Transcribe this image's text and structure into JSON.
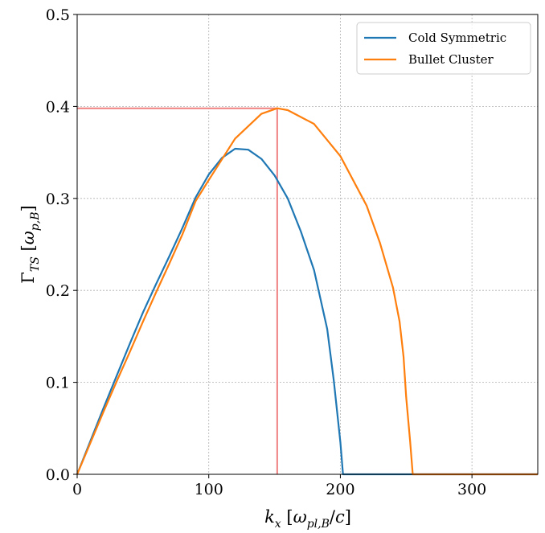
{
  "chart_data": {
    "type": "line",
    "xlabel": "k_x [ω_pl,B/c]",
    "ylabel": "Γ_TS [ω_p,B]",
    "xlim": [
      0,
      350
    ],
    "ylim": [
      0,
      0.5
    ],
    "x_ticks": [
      "0",
      "100",
      "200",
      "300"
    ],
    "y_ticks": [
      "0.0",
      "0.1",
      "0.2",
      "0.3",
      "0.4",
      "0.5"
    ],
    "grid": true,
    "legend_position": "top-right",
    "series": [
      {
        "name": "Cold Symmetric",
        "color": "#1f77b4",
        "x": [
          0,
          10,
          20,
          30,
          40,
          50,
          60,
          70,
          80,
          90,
          100,
          110,
          120,
          130,
          140,
          150,
          160,
          170,
          180,
          190,
          195,
          200,
          202,
          350
        ],
        "y": [
          0,
          0.036,
          0.072,
          0.107,
          0.142,
          0.176,
          0.207,
          0.237,
          0.268,
          0.301,
          0.326,
          0.344,
          0.354,
          0.353,
          0.343,
          0.325,
          0.3,
          0.264,
          0.222,
          0.158,
          0.102,
          0.035,
          0,
          0
        ]
      },
      {
        "name": "Bullet Cluster",
        "color": "#ff7f0e",
        "x": [
          0,
          10,
          20,
          30,
          40,
          50,
          60,
          70,
          80,
          90,
          100,
          120,
          140,
          152,
          160,
          180,
          200,
          220,
          230,
          240,
          245,
          248,
          250,
          253,
          255,
          350
        ],
        "y": [
          0,
          0.034,
          0.068,
          0.101,
          0.133,
          0.166,
          0.198,
          0.229,
          0.261,
          0.297,
          0.32,
          0.365,
          0.392,
          0.398,
          0.396,
          0.381,
          0.346,
          0.292,
          0.252,
          0.203,
          0.166,
          0.128,
          0.084,
          0.036,
          0,
          0
        ]
      }
    ],
    "annotations": [
      {
        "type": "hline",
        "y": 0.398,
        "x_from": 0,
        "x_to": 152,
        "color": "#f08080"
      },
      {
        "type": "vline",
        "x": 152,
        "y_from": 0,
        "y_to": 0.398,
        "color": "#f08080"
      }
    ]
  }
}
